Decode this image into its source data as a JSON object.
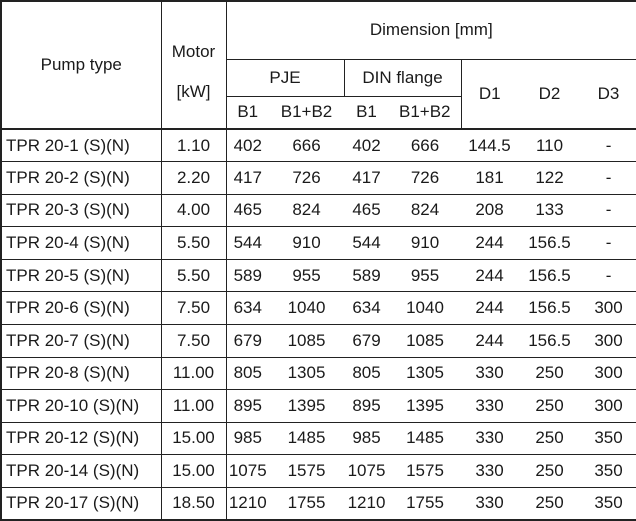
{
  "header": {
    "pump_type": "Pump type",
    "motor": "Motor",
    "motor_unit": "[kW]",
    "dimension": "Dimension [mm]",
    "pje": "PJE",
    "din": "DIN flange",
    "cols": [
      "B1",
      "B1+B2",
      "B1",
      "B1+B2"
    ],
    "d1": "D1",
    "d2": "D2",
    "d3": "D3"
  },
  "rows": [
    [
      "TPR 20-1 (S)(N)",
      "1.10",
      "402",
      "666",
      "402",
      "666",
      "144.5",
      "110",
      "-"
    ],
    [
      "TPR 20-2 (S)(N)",
      "2.20",
      "417",
      "726",
      "417",
      "726",
      "181",
      "122",
      "-"
    ],
    [
      "TPR 20-3 (S)(N)",
      "4.00",
      "465",
      "824",
      "465",
      "824",
      "208",
      "133",
      "-"
    ],
    [
      "TPR 20-4 (S)(N)",
      "5.50",
      "544",
      "910",
      "544",
      "910",
      "244",
      "156.5",
      "-"
    ],
    [
      "TPR 20-5 (S)(N)",
      "5.50",
      "589",
      "955",
      "589",
      "955",
      "244",
      "156.5",
      "-"
    ],
    [
      "TPR 20-6 (S)(N)",
      "7.50",
      "634",
      "1040",
      "634",
      "1040",
      "244",
      "156.5",
      "300"
    ],
    [
      "TPR 20-7 (S)(N)",
      "7.50",
      "679",
      "1085",
      "679",
      "1085",
      "244",
      "156.5",
      "300"
    ],
    [
      "TPR 20-8 (S)(N)",
      "11.00",
      "805",
      "1305",
      "805",
      "1305",
      "330",
      "250",
      "300"
    ],
    [
      "TPR 20-10 (S)(N)",
      "11.00",
      "895",
      "1395",
      "895",
      "1395",
      "330",
      "250",
      "300"
    ],
    [
      "TPR 20-12 (S)(N)",
      "15.00",
      "985",
      "1485",
      "985",
      "1485",
      "330",
      "250",
      "350"
    ],
    [
      "TPR 20-14 (S)(N)",
      "15.00",
      "1075",
      "1575",
      "1075",
      "1575",
      "330",
      "250",
      "350"
    ],
    [
      "TPR 20-17 (S)(N)",
      "18.50",
      "1210",
      "1755",
      "1210",
      "1755",
      "330",
      "250",
      "350"
    ]
  ]
}
